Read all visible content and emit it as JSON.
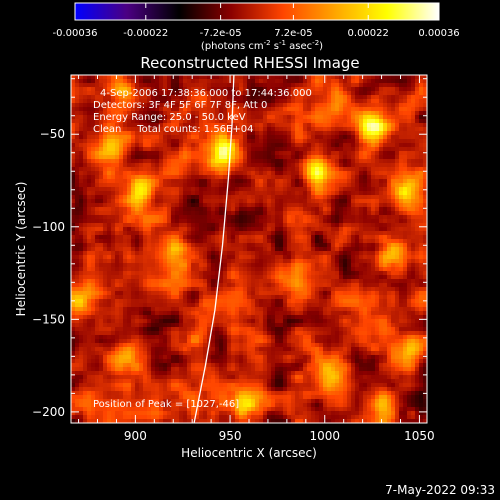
{
  "chart_data": {
    "type": "heatmap",
    "title": "Reconstructed RHESSI Image",
    "xlabel": "Heliocentric X (arcsec)",
    "ylabel": "Heliocentric Y (arcsec)",
    "xlim": [
      866,
      1054
    ],
    "ylim": [
      -206,
      -18
    ],
    "x_ticks": [
      900,
      950,
      1000,
      1050
    ],
    "y_ticks": [
      -50,
      -100,
      -150,
      -200
    ],
    "colorbar": {
      "min": -0.00036,
      "max": 0.00036,
      "tick_values": [
        -0.00036,
        -0.00022,
        -7.2e-05,
        7.2e-05,
        0.00022,
        0.00036
      ],
      "tick_labels": [
        "-0.00036",
        "-0.00022",
        "-7.2e-05",
        "7.2e-05",
        "0.00022",
        "0.00036"
      ],
      "units_prefix": "(photons cm",
      "units_sup1": "-2",
      "units_mid1": " s",
      "units_sup2": "-1",
      "units_mid2": " asec",
      "units_sup3": "-2",
      "units_suffix": ")",
      "colors": [
        "#0000ff",
        "#4b0082",
        "#000000",
        "#8b0000",
        "#ff4500",
        "#ffa500",
        "#ffff00",
        "#ffffff"
      ]
    },
    "annotations": {
      "time_range": "4-Sep-2006 17:38:36.000 to 17:44:36.000",
      "detectors": "Detectors: 3F 4F 5F 6F 7F 8F, Att 0",
      "energy": "Energy Range: 25.0 - 50.0 keV",
      "method": "Clean     Total counts: 1.56E+04",
      "peak": "Position of Peak = [1027,-46]"
    },
    "limb": {
      "points": [
        [
          931,
          -206
        ],
        [
          937,
          -175
        ],
        [
          942,
          -145
        ],
        [
          946,
          -110
        ],
        [
          949,
          -75
        ],
        [
          951,
          -45
        ],
        [
          952,
          -18
        ]
      ]
    },
    "hot_spots": [
      {
        "x": 1027,
        "y": -46,
        "value": 0.00036
      },
      {
        "x": 947,
        "y": -60,
        "value": 0.00033
      },
      {
        "x": 996,
        "y": -69,
        "value": 0.00031
      },
      {
        "x": 887,
        "y": -60,
        "value": 0.00024
      },
      {
        "x": 903,
        "y": -80,
        "value": 0.00022
      },
      {
        "x": 894,
        "y": -28,
        "value": 0.0002
      },
      {
        "x": 1044,
        "y": -80,
        "value": 0.00021
      },
      {
        "x": 1038,
        "y": -115,
        "value": 0.00018
      },
      {
        "x": 920,
        "y": -113,
        "value": 0.00017
      },
      {
        "x": 985,
        "y": -128,
        "value": 0.00016
      },
      {
        "x": 897,
        "y": -170,
        "value": 0.00016
      },
      {
        "x": 957,
        "y": -196,
        "value": 0.00018
      },
      {
        "x": 1002,
        "y": -182,
        "value": 0.00017
      },
      {
        "x": 935,
        "y": -150,
        "value": 0.00014
      },
      {
        "x": 1045,
        "y": -168,
        "value": 0.00019
      },
      {
        "x": 870,
        "y": -140,
        "value": 0.00015
      },
      {
        "x": 1008,
        "y": -30,
        "value": 0.00015
      },
      {
        "x": 875,
        "y": -195,
        "value": 0.00013
      },
      {
        "x": 1030,
        "y": -197,
        "value": 0.00014
      }
    ]
  },
  "footer": {
    "date": "7-May-2022 09:33"
  }
}
